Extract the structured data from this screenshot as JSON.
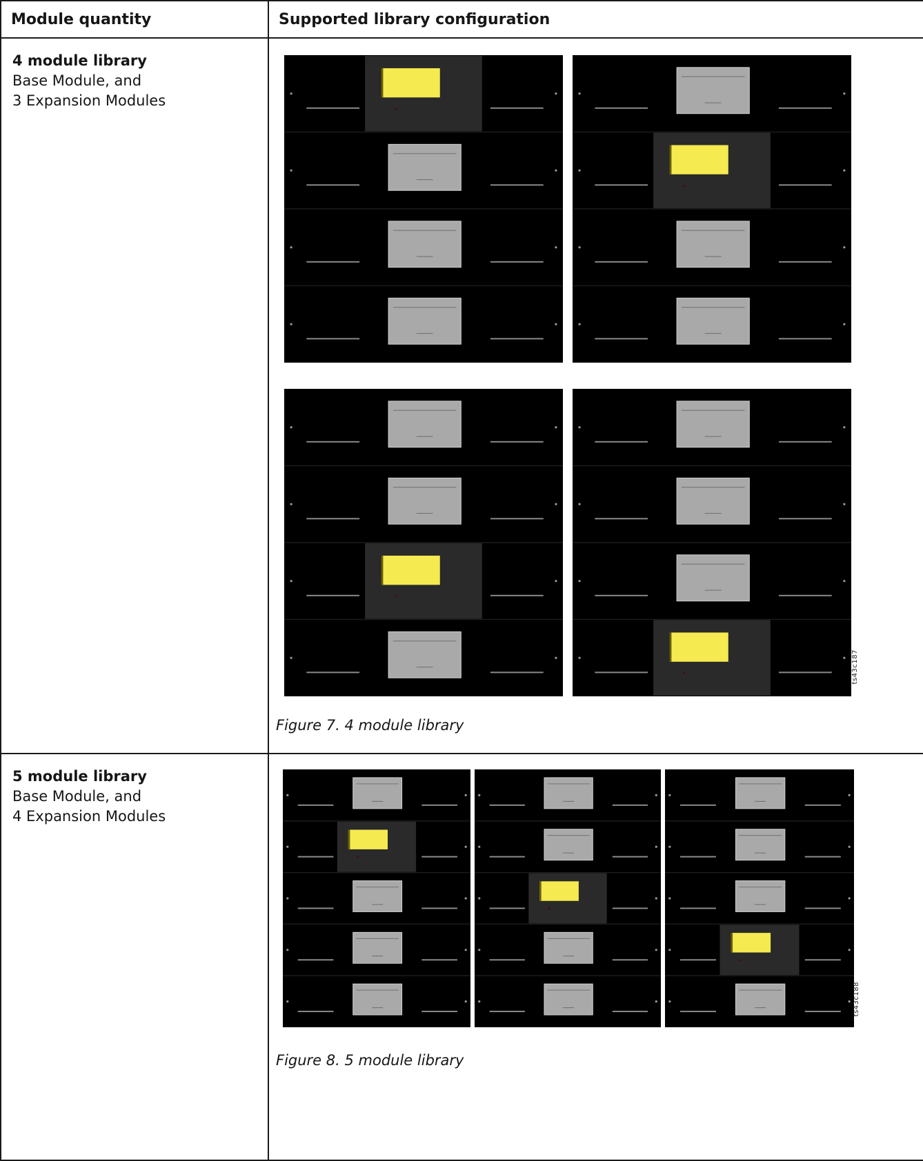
{
  "table": {
    "header_quantity": "Module quantity",
    "header_config": "Supported library configuration"
  },
  "rows": [
    {
      "title": "4 module library",
      "line1": "Base Module, and",
      "line2": "3 Expansion Modules",
      "caption": "Figure 7. 4 module library",
      "figure_tag": "ts43c187",
      "modules": 4,
      "base_positions": [
        1,
        2,
        3,
        4
      ]
    },
    {
      "title": "5 module library",
      "line1": "Base Module, and",
      "line2": "4 Expansion Modules",
      "caption": "Figure 8. 5 module library",
      "figure_tag": "ts43c188",
      "modules": 5,
      "base_positions": [
        2,
        3,
        4
      ]
    }
  ],
  "colors": {
    "module_bg": "#000000",
    "base_panel": "#2a2a2a",
    "display_yellow": "#f5ea4f",
    "window_gray": "#a9a9a9"
  }
}
